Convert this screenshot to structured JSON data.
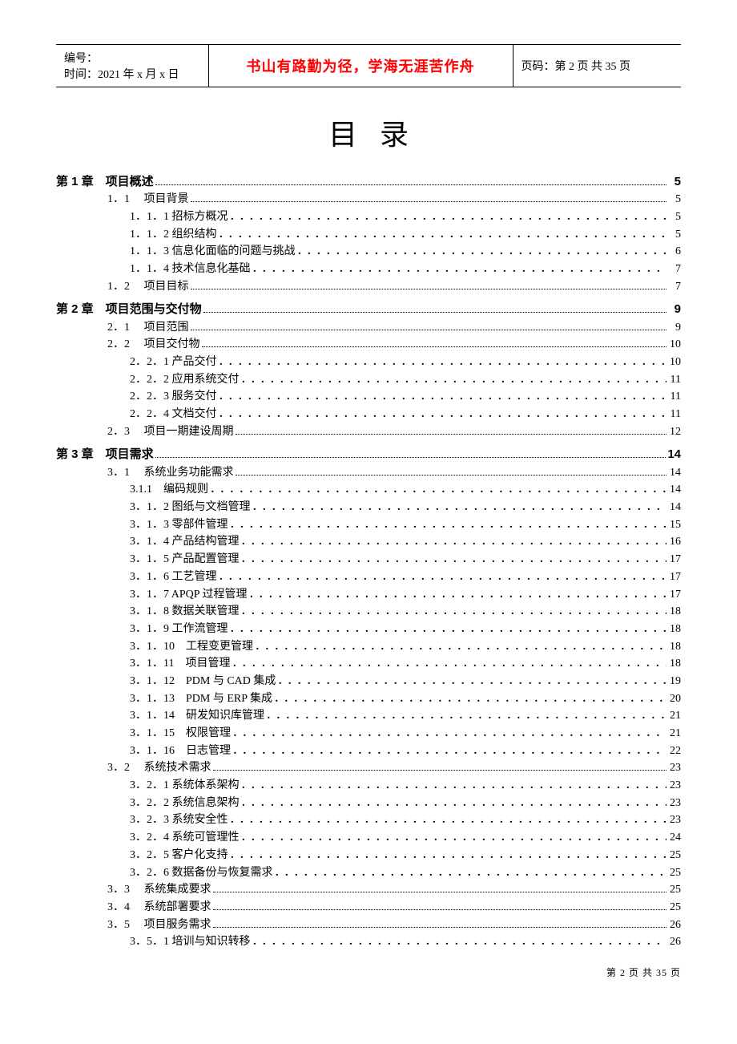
{
  "header": {
    "id_label": "编号：",
    "time_label": "时间：",
    "time_value": "2021 年 x 月 x 日",
    "quote": "书山有路勤为径，学海无涯苦作舟",
    "page_label": "页码：第 2 页 共 35 页"
  },
  "title": "目录",
  "toc": [
    {
      "level": 1,
      "label": "第 1 章　项目概述",
      "page": "5"
    },
    {
      "level": 2,
      "label": "1．1　 项目背景",
      "page": "5"
    },
    {
      "level": 3,
      "label": "1．1．1 招标方概况",
      "page": "5"
    },
    {
      "level": 3,
      "label": "1．1．2 组织结构",
      "page": "5"
    },
    {
      "level": 3,
      "label": "1．1．3 信息化面临的问题与挑战",
      "page": "6"
    },
    {
      "level": 3,
      "label": "1．1．4 技术信息化基础",
      "page": "7"
    },
    {
      "level": 2,
      "label": "1．2　 项目目标",
      "page": "7"
    },
    {
      "level": 1,
      "label": "第 2 章　项目范围与交付物",
      "page": "9"
    },
    {
      "level": 2,
      "label": "2．1　 项目范围",
      "page": "9"
    },
    {
      "level": 2,
      "label": "2．2　 项目交付物",
      "page": "10"
    },
    {
      "level": 3,
      "label": "2．2．1 产品交付",
      "page": "10"
    },
    {
      "level": 3,
      "label": "2．2．2 应用系统交付",
      "page": "11"
    },
    {
      "level": 3,
      "label": "2．2．3 服务交付",
      "page": "11"
    },
    {
      "level": 3,
      "label": "2．2．4 文档交付",
      "page": "11"
    },
    {
      "level": 2,
      "label": "2．3　 项目一期建设周期",
      "page": "12"
    },
    {
      "level": 1,
      "label": "第 3 章　项目需求",
      "page": "14"
    },
    {
      "level": 2,
      "label": "3．1　 系统业务功能需求",
      "page": "14"
    },
    {
      "level": 3,
      "label": "3.1.1　编码规则",
      "page": "14"
    },
    {
      "level": 3,
      "label": "3．1．2 图纸与文档管理",
      "page": "14"
    },
    {
      "level": 3,
      "label": "3．1．3 零部件管理",
      "page": "15"
    },
    {
      "level": 3,
      "label": "3．1．4 产品结构管理",
      "page": "16"
    },
    {
      "level": 3,
      "label": "3．1．5 产品配置管理",
      "page": "17"
    },
    {
      "level": 3,
      "label": "3．1．6 工艺管理",
      "page": "17"
    },
    {
      "level": 3,
      "label": "3．1．7 APQP 过程管理",
      "page": "17"
    },
    {
      "level": 3,
      "label": "3．1．8 数据关联管理",
      "page": "18"
    },
    {
      "level": 3,
      "label": "3．1．9 工作流管理",
      "page": "18"
    },
    {
      "level": 3,
      "label": "3．1．10　工程变更管理",
      "page": "18"
    },
    {
      "level": 3,
      "label": "3．1．11　项目管理",
      "page": "18"
    },
    {
      "level": 3,
      "label": "3．1．12　PDM 与 CAD 集成",
      "page": "19"
    },
    {
      "level": 3,
      "label": "3．1．13　PDM 与 ERP 集成",
      "page": "20"
    },
    {
      "level": 3,
      "label": "3．1．14　研发知识库管理",
      "page": "21"
    },
    {
      "level": 3,
      "label": "3．1．15　权限管理",
      "page": "21"
    },
    {
      "level": 3,
      "label": "3．1．16　日志管理",
      "page": "22"
    },
    {
      "level": 2,
      "label": "3．2　 系统技术需求",
      "page": "23"
    },
    {
      "level": 3,
      "label": "3．2．1 系统体系架构",
      "page": "23"
    },
    {
      "level": 3,
      "label": "3．2．2 系统信息架构",
      "page": "23"
    },
    {
      "level": 3,
      "label": "3．2．3 系统安全性",
      "page": "23"
    },
    {
      "level": 3,
      "label": "3．2．4 系统可管理性",
      "page": "24"
    },
    {
      "level": 3,
      "label": "3．2．5 客户化支持",
      "page": "25"
    },
    {
      "level": 3,
      "label": "3．2．6 数据备份与恢复需求",
      "page": "25"
    },
    {
      "level": 2,
      "label": "3．3　 系统集成要求",
      "page": "25"
    },
    {
      "level": 2,
      "label": "3．4　 系统部署要求",
      "page": "25"
    },
    {
      "level": 2,
      "label": "3．5　 项目服务需求",
      "page": "26"
    },
    {
      "level": 3,
      "label": "3．5．1 培训与知识转移",
      "page": "26"
    }
  ],
  "footer": "第  2  页  共  35  页",
  "colors": {
    "text": "#000000",
    "quote": "#ff0000",
    "background": "#ffffff"
  },
  "typography": {
    "body_font": "SimSun",
    "heading_font": "SimHei",
    "body_size_pt": 14,
    "title_size_pt": 36,
    "quote_size_pt": 18,
    "footer_size_pt": 12
  }
}
